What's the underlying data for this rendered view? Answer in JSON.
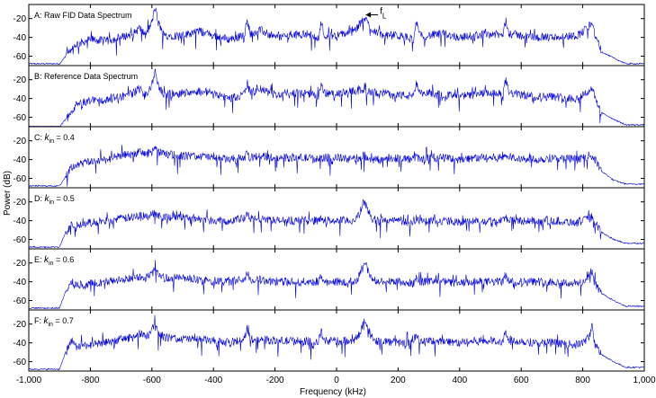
{
  "chart_data": {
    "type": "line",
    "xlabel": "Frequency (kHz)",
    "ylabel": "Power (dB)",
    "xlim": [
      -1000,
      1000
    ],
    "x_ticks": [
      -1000,
      -800,
      -600,
      -400,
      -200,
      0,
      200,
      400,
      600,
      800,
      1000
    ],
    "x_tick_labels": [
      "-1,000",
      "-800",
      "-600",
      "-400",
      "-200",
      "0",
      "200",
      "400",
      "600",
      "800",
      "1,000"
    ],
    "y_ticks": [
      -20,
      -40,
      -60
    ],
    "y_tick_labels": [
      "-20",
      "-40",
      "-60"
    ],
    "grid": false,
    "line_color": "#0000dd",
    "panels": [
      {
        "label_prefix": "A: ",
        "label_k": "",
        "label_sub": "",
        "label_suffix": "Raw FID Data Spectrum",
        "annotation": {
          "text": "f",
          "sub": "L",
          "x": 88,
          "y": -16
        },
        "ylim": [
          -70,
          -5
        ],
        "series": [
          {
            "x": [
              -1000,
              -900,
              -880,
              -860,
              -850,
              -800,
              -750,
              -700,
              -660,
              -640,
              -620,
              -600,
              -590,
              -580,
              -560,
              -500,
              -450,
              -400,
              -350,
              -300,
              -290,
              -280,
              -250,
              -200,
              -150,
              -100,
              -60,
              -50,
              -40,
              0,
              50,
              70,
              90,
              110,
              130,
              150,
              200,
              250,
              260,
              270,
              300,
              350,
              400,
              450,
              500,
              540,
              550,
              560,
              600,
              650,
              700,
              780,
              800,
              820,
              830,
              840,
              860,
              900,
              940,
              1000
            ],
            "y": [
              -68,
              -68,
              -60,
              -55,
              -48,
              -42,
              -44,
              -40,
              -36,
              -30,
              -38,
              -24,
              -8,
              -24,
              -38,
              -38,
              -33,
              -38,
              -42,
              -38,
              -22,
              -36,
              -32,
              -40,
              -38,
              -36,
              -40,
              -24,
              -38,
              -38,
              -34,
              -30,
              -18,
              -30,
              -34,
              -38,
              -38,
              -42,
              -24,
              -38,
              -38,
              -36,
              -40,
              -38,
              -36,
              -38,
              -22,
              -36,
              -38,
              -40,
              -40,
              -38,
              -34,
              -28,
              -22,
              -38,
              -55,
              -62,
              -68,
              -68
            ]
          }
        ]
      },
      {
        "label_prefix": "B: ",
        "label_k": "",
        "label_sub": "",
        "label_suffix": "Reference Data Spectrum",
        "ylim": [
          -70,
          -5
        ],
        "series": [
          {
            "x": [
              -1000,
              -900,
              -880,
              -860,
              -850,
              -800,
              -750,
              -700,
              -660,
              -640,
              -620,
              -600,
              -590,
              -580,
              -560,
              -500,
              -450,
              -400,
              -350,
              -300,
              -290,
              -280,
              -250,
              -200,
              -150,
              -100,
              -60,
              -50,
              -40,
              0,
              50,
              70,
              90,
              110,
              130,
              150,
              200,
              250,
              260,
              270,
              300,
              350,
              400,
              450,
              500,
              540,
              550,
              560,
              600,
              650,
              700,
              780,
              800,
              820,
              830,
              840,
              860,
              900,
              940,
              1000
            ],
            "y": [
              -70,
              -70,
              -62,
              -56,
              -48,
              -42,
              -42,
              -38,
              -34,
              -30,
              -36,
              -26,
              -10,
              -26,
              -36,
              -34,
              -32,
              -34,
              -40,
              -36,
              -24,
              -34,
              -30,
              -36,
              -34,
              -34,
              -38,
              -26,
              -34,
              -36,
              -32,
              -32,
              -30,
              -34,
              -34,
              -34,
              -36,
              -38,
              -24,
              -36,
              -34,
              -36,
              -38,
              -36,
              -34,
              -36,
              -20,
              -34,
              -36,
              -38,
              -38,
              -40,
              -36,
              -32,
              -28,
              -40,
              -55,
              -62,
              -68,
              -68
            ]
          }
        ]
      },
      {
        "label_prefix": "C: ",
        "label_k": "k",
        "label_sub": "in",
        "label_suffix": " = 0.4",
        "ylim": [
          -70,
          -5
        ],
        "series": [
          {
            "x": [
              -1000,
              -900,
              -880,
              -860,
              -850,
              -800,
              -750,
              -700,
              -660,
              -640,
              -620,
              -600,
              -590,
              -580,
              -560,
              -500,
              -450,
              -400,
              -350,
              -300,
              -290,
              -280,
              -250,
              -200,
              -150,
              -100,
              -60,
              -50,
              -40,
              0,
              50,
              70,
              90,
              110,
              130,
              150,
              200,
              250,
              260,
              270,
              300,
              350,
              400,
              450,
              500,
              540,
              550,
              560,
              600,
              650,
              700,
              780,
              800,
              820,
              830,
              840,
              860,
              900,
              940,
              1000
            ],
            "y": [
              -68,
              -68,
              -58,
              -48,
              -46,
              -42,
              -40,
              -36,
              -34,
              -32,
              -34,
              -32,
              -26,
              -32,
              -34,
              -36,
              -36,
              -38,
              -40,
              -38,
              -34,
              -38,
              -36,
              -38,
              -38,
              -38,
              -40,
              -36,
              -38,
              -38,
              -40,
              -38,
              -36,
              -40,
              -40,
              -40,
              -38,
              -40,
              -36,
              -40,
              -38,
              -38,
              -40,
              -38,
              -38,
              -38,
              -34,
              -38,
              -38,
              -40,
              -38,
              -40,
              -38,
              -36,
              -36,
              -40,
              -52,
              -62,
              -66,
              -66
            ]
          }
        ]
      },
      {
        "label_prefix": "D: ",
        "label_k": "k",
        "label_sub": "in",
        "label_suffix": " = 0.5",
        "ylim": [
          -70,
          -5
        ],
        "series": [
          {
            "x": [
              -1000,
              -900,
              -880,
              -860,
              -850,
              -800,
              -750,
              -700,
              -660,
              -640,
              -620,
              -600,
              -590,
              -580,
              -560,
              -500,
              -450,
              -400,
              -350,
              -300,
              -290,
              -280,
              -250,
              -200,
              -150,
              -100,
              -60,
              -50,
              -40,
              0,
              50,
              70,
              90,
              110,
              130,
              150,
              200,
              250,
              260,
              270,
              300,
              350,
              400,
              450,
              500,
              540,
              550,
              560,
              600,
              650,
              700,
              780,
              800,
              820,
              830,
              840,
              860,
              900,
              940,
              1000
            ],
            "y": [
              -68,
              -68,
              -52,
              -44,
              -46,
              -42,
              -40,
              -38,
              -36,
              -34,
              -36,
              -34,
              -30,
              -34,
              -36,
              -36,
              -38,
              -40,
              -40,
              -38,
              -34,
              -38,
              -38,
              -40,
              -40,
              -40,
              -40,
              -36,
              -40,
              -40,
              -40,
              -36,
              -20,
              -34,
              -40,
              -40,
              -40,
              -42,
              -38,
              -40,
              -40,
              -40,
              -42,
              -40,
              -40,
              -40,
              -36,
              -40,
              -40,
              -40,
              -40,
              -42,
              -40,
              -38,
              -36,
              -42,
              -52,
              -60,
              -64,
              -64
            ]
          }
        ]
      },
      {
        "label_prefix": "E: ",
        "label_k": "k",
        "label_sub": "in",
        "label_suffix": " = 0.6",
        "ylim": [
          -70,
          -5
        ],
        "series": [
          {
            "x": [
              -1000,
              -900,
              -880,
              -860,
              -850,
              -800,
              -750,
              -700,
              -660,
              -640,
              -620,
              -600,
              -590,
              -580,
              -560,
              -500,
              -450,
              -400,
              -350,
              -300,
              -290,
              -280,
              -250,
              -200,
              -150,
              -100,
              -60,
              -50,
              -40,
              0,
              50,
              70,
              90,
              110,
              130,
              150,
              200,
              250,
              260,
              270,
              300,
              350,
              400,
              450,
              500,
              540,
              550,
              560,
              600,
              650,
              700,
              780,
              800,
              820,
              830,
              840,
              860,
              900,
              940,
              1000
            ],
            "y": [
              -68,
              -68,
              -50,
              -40,
              -44,
              -42,
              -40,
              -38,
              -36,
              -34,
              -36,
              -32,
              -26,
              -32,
              -36,
              -36,
              -38,
              -40,
              -40,
              -38,
              -30,
              -38,
              -38,
              -40,
              -40,
              -40,
              -40,
              -34,
              -40,
              -40,
              -40,
              -36,
              -18,
              -34,
              -40,
              -40,
              -40,
              -42,
              -34,
              -40,
              -40,
              -40,
              -42,
              -40,
              -40,
              -40,
              -32,
              -40,
              -40,
              -40,
              -40,
              -42,
              -40,
              -36,
              -30,
              -42,
              -52,
              -60,
              -66,
              -66
            ]
          }
        ]
      },
      {
        "label_prefix": "F: ",
        "label_k": "k",
        "label_sub": "in",
        "label_suffix": " = 0.7",
        "ylim": [
          -70,
          -5
        ],
        "series": [
          {
            "x": [
              -1000,
              -900,
              -880,
              -860,
              -850,
              -800,
              -750,
              -700,
              -660,
              -640,
              -620,
              -600,
              -590,
              -580,
              -560,
              -500,
              -450,
              -400,
              -350,
              -300,
              -290,
              -280,
              -250,
              -200,
              -150,
              -100,
              -60,
              -50,
              -40,
              0,
              50,
              70,
              90,
              110,
              130,
              150,
              200,
              250,
              260,
              270,
              300,
              350,
              400,
              450,
              500,
              540,
              550,
              560,
              600,
              650,
              700,
              780,
              800,
              820,
              830,
              840,
              860,
              900,
              940,
              1000
            ],
            "y": [
              -68,
              -68,
              -50,
              -38,
              -44,
              -42,
              -40,
              -36,
              -34,
              -30,
              -34,
              -28,
              -14,
              -28,
              -34,
              -36,
              -36,
              -38,
              -40,
              -36,
              -24,
              -36,
              -36,
              -38,
              -38,
              -38,
              -40,
              -28,
              -38,
              -38,
              -38,
              -34,
              -16,
              -32,
              -38,
              -38,
              -40,
              -40,
              -28,
              -40,
              -38,
              -38,
              -40,
              -38,
              -38,
              -38,
              -26,
              -38,
              -38,
              -40,
              -40,
              -42,
              -40,
              -34,
              -22,
              -42,
              -52,
              -60,
              -66,
              -66
            ]
          }
        ]
      }
    ]
  }
}
